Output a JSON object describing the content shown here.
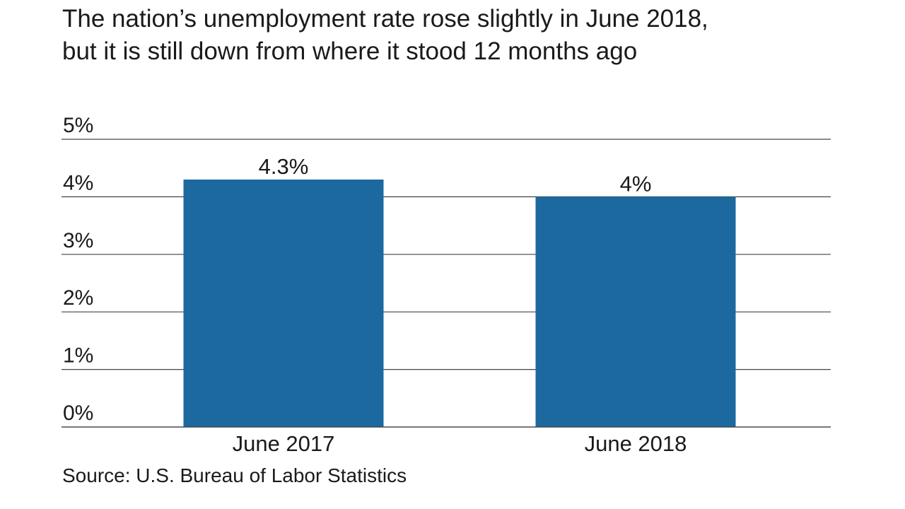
{
  "chart_data": {
    "type": "bar",
    "title": "The nation’s unemployment rate rose slightly in June 2018, but it is still down from where it stood 12 months ago",
    "title_lines": [
      "The nation’s unemployment rate rose slightly in June 2018,",
      "but it is still down from where it stood 12 months ago"
    ],
    "categories": [
      "June 2017",
      "June 2018"
    ],
    "values": [
      4.3,
      4.0
    ],
    "data_labels": [
      "4.3%",
      "4%"
    ],
    "yticks": [
      0,
      1,
      2,
      3,
      4,
      5
    ],
    "ytick_labels": [
      "0%",
      "1%",
      "2%",
      "3%",
      "4%",
      "5%"
    ],
    "ylim": [
      0,
      5
    ],
    "xlabel": "",
    "ylabel": "",
    "grid": true,
    "bar_color": "#1c69a0",
    "source": "Source: U.S. Bureau of Labor Statistics"
  }
}
